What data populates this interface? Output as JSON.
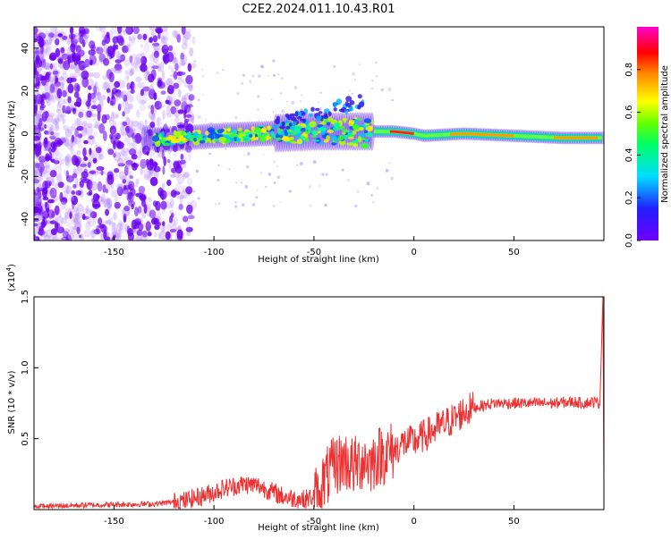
{
  "title": "C2E2.2024.011.10.43.R01",
  "chart_data": [
    {
      "type": "heatmap",
      "xlabel": "Height of straight line (km)",
      "ylabel": "Frequency (Hz)",
      "xlim": [
        -190,
        95
      ],
      "ylim": [
        -50,
        50
      ],
      "x_ticks": [
        -150,
        -100,
        -50,
        0,
        50
      ],
      "y_ticks": [
        -40,
        -20,
        0,
        20,
        40
      ],
      "colorbar": {
        "label": "Normalized spectral amplitude",
        "range": [
          0,
          1
        ],
        "ticks": [
          "0.0",
          "0.2",
          "0.4",
          "0.6",
          "0.8"
        ]
      },
      "ridge": [
        {
          "x": -130,
          "y": -3
        },
        {
          "x": -100,
          "y": -1
        },
        {
          "x": -75,
          "y": 0
        },
        {
          "x": -50,
          "y": 1
        },
        {
          "x": -25,
          "y": 1
        },
        {
          "x": -10,
          "y": 1
        },
        {
          "x": 0,
          "y": 0
        },
        {
          "x": 5,
          "y": -1
        },
        {
          "x": 25,
          "y": 0
        },
        {
          "x": 50,
          "y": -1
        },
        {
          "x": 75,
          "y": -2
        },
        {
          "x": 95,
          "y": -2
        }
      ]
    },
    {
      "type": "line",
      "xlabel": "Height of straight line (km)",
      "ylabel": "SNR (10 * v/v)",
      "y_multiplier": "(x10",
      "y_multiplier_exp": "4",
      "y_multiplier_close": ")",
      "xlim": [
        -190,
        95
      ],
      "ylim": [
        0,
        15000
      ],
      "x_ticks": [
        -150,
        -100,
        -50,
        0,
        50
      ],
      "y_ticks": [
        "0.5",
        "1.0",
        "1.5"
      ],
      "series": [
        {
          "color": "#ee3030",
          "x": [
            -190,
            -170,
            -150,
            -130,
            -115,
            -105,
            -95,
            -85,
            -78,
            -70,
            -65,
            -55,
            -48,
            -45,
            -40,
            -35,
            -30,
            -25,
            -22,
            -18,
            -12,
            -5,
            0,
            5,
            10,
            15,
            20,
            25,
            30,
            40,
            50,
            60,
            70,
            80,
            85,
            90,
            93,
            94.5,
            95
          ],
          "y": [
            200,
            300,
            350,
            400,
            600,
            1000,
            1500,
            1800,
            1700,
            1200,
            900,
            700,
            1000,
            2000,
            3000,
            3500,
            3000,
            3600,
            3200,
            3800,
            4000,
            4700,
            4800,
            5200,
            5600,
            6000,
            6400,
            6900,
            7200,
            7500,
            7500,
            7500,
            7500,
            7600,
            7500,
            7600,
            7500,
            15000,
            2000
          ]
        }
      ]
    }
  ]
}
